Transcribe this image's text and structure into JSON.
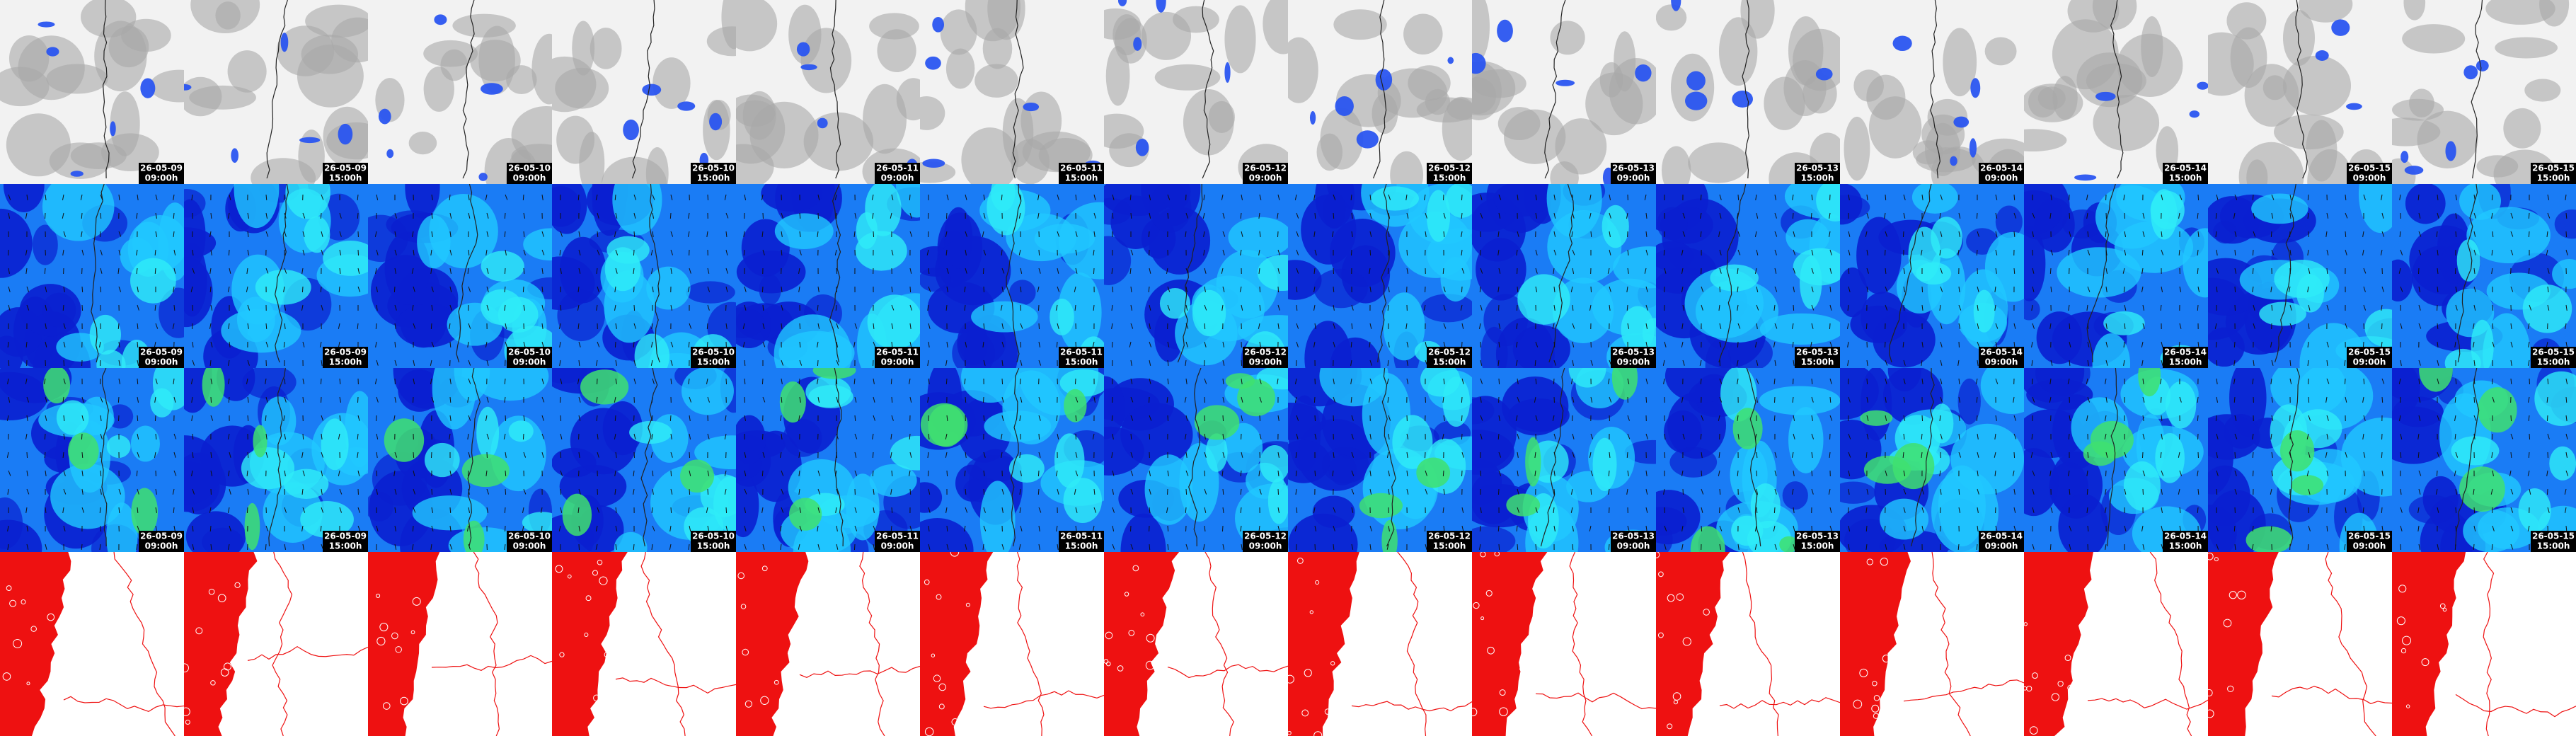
{
  "columns": [
    {
      "date": "26-05-09",
      "time": "09:00h"
    },
    {
      "date": "26-05-09",
      "time": "15:00h"
    },
    {
      "date": "26-05-10",
      "time": "09:00h"
    },
    {
      "date": "26-05-10",
      "time": "15:00h"
    },
    {
      "date": "26-05-11",
      "time": "09:00h"
    },
    {
      "date": "26-05-11",
      "time": "15:00h"
    },
    {
      "date": "26-05-12",
      "time": "09:00h"
    },
    {
      "date": "26-05-12",
      "time": "15:00h"
    },
    {
      "date": "26-05-13",
      "time": "09:00h"
    },
    {
      "date": "26-05-13",
      "time": "15:00h"
    },
    {
      "date": "26-05-14",
      "time": "09:00h"
    },
    {
      "date": "26-05-14",
      "time": "15:00h"
    },
    {
      "date": "26-05-15",
      "time": "09:00h"
    },
    {
      "date": "26-05-15",
      "time": "15:00h"
    }
  ]
}
